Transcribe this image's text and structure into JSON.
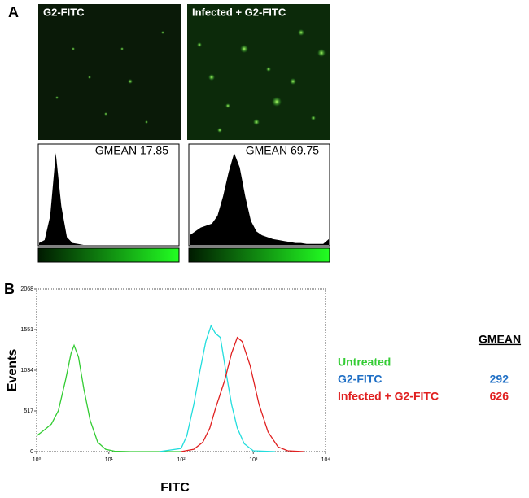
{
  "panels": {
    "a": "A",
    "b": "B"
  },
  "images": [
    {
      "label": "G2-FITC"
    },
    {
      "label": "Infected + G2-FITC"
    }
  ],
  "chart_data": [
    {
      "type": "area",
      "annotation": "GMEAN 17.85",
      "color": "#000000",
      "x": [
        0,
        2,
        4,
        6,
        8,
        10,
        12,
        14,
        16,
        18,
        20,
        22,
        24,
        26,
        28,
        30,
        32,
        34,
        36,
        38,
        40,
        42,
        44,
        46,
        48,
        50
      ],
      "values": [
        2,
        5,
        30,
        95,
        40,
        8,
        2,
        1,
        0,
        0,
        0,
        0,
        0,
        0,
        0,
        0,
        0,
        0,
        0,
        0,
        0,
        0,
        0,
        0,
        0,
        0
      ],
      "xlim": [
        0,
        50
      ],
      "ylim": [
        0,
        100
      ]
    },
    {
      "type": "area",
      "annotation": "GMEAN 69.75",
      "color": "#000000",
      "x": [
        0,
        2,
        4,
        6,
        8,
        10,
        12,
        14,
        16,
        18,
        20,
        22,
        24,
        26,
        28,
        30,
        32,
        34,
        36,
        38,
        40,
        42,
        44,
        46,
        48,
        50
      ],
      "values": [
        10,
        14,
        18,
        20,
        22,
        30,
        50,
        75,
        95,
        80,
        50,
        25,
        14,
        10,
        8,
        6,
        5,
        4,
        3,
        2,
        2,
        1,
        1,
        1,
        1,
        6
      ],
      "xlim": [
        0,
        50
      ],
      "ylim": [
        0,
        100
      ]
    },
    {
      "type": "line",
      "x_label": "FITC",
      "y_label": "Events",
      "log_x": true,
      "legend_title": "GMEAN",
      "xlim": [
        1,
        10000
      ],
      "ylim": [
        0,
        2068
      ],
      "xticks": [
        {
          "value": 1,
          "label": "10⁰"
        },
        {
          "value": 10,
          "label": "10¹"
        },
        {
          "value": 100,
          "label": "10²"
        },
        {
          "value": 1000,
          "label": "10³"
        },
        {
          "value": 10000,
          "label": "10⁴"
        }
      ],
      "yticks": [
        0,
        517,
        1034,
        1551,
        2068
      ],
      "series": [
        {
          "name": "Untreated",
          "color": "#33cc33",
          "label_color": "#33cc33",
          "x": [
            1,
            1.3,
            1.6,
            2,
            2.5,
            3,
            3.3,
            3.8,
            4.5,
            5.5,
            7,
            9,
            12,
            20,
            100
          ],
          "values": [
            200,
            280,
            350,
            520,
            900,
            1250,
            1350,
            1200,
            800,
            400,
            120,
            30,
            5,
            0,
            0
          ]
        },
        {
          "name": "G2-FITC",
          "color": "#22dddd",
          "label_color": "#1f6fc5",
          "gmean": 292,
          "x": [
            50,
            100,
            120,
            150,
            180,
            220,
            260,
            300,
            350,
            420,
            500,
            600,
            750,
            1000,
            2000
          ],
          "values": [
            0,
            40,
            200,
            600,
            1000,
            1400,
            1600,
            1500,
            1450,
            1000,
            600,
            300,
            100,
            10,
            0
          ]
        },
        {
          "name": "Infected + G2-FITC",
          "color": "#e02020",
          "label_color": "#e02020",
          "gmean": 626,
          "x": [
            100,
            150,
            200,
            250,
            300,
            400,
            500,
            600,
            700,
            900,
            1200,
            1600,
            2200,
            3000,
            5000
          ],
          "values": [
            0,
            30,
            120,
            300,
            550,
            900,
            1250,
            1450,
            1400,
            1100,
            600,
            250,
            60,
            10,
            0
          ]
        }
      ]
    }
  ]
}
